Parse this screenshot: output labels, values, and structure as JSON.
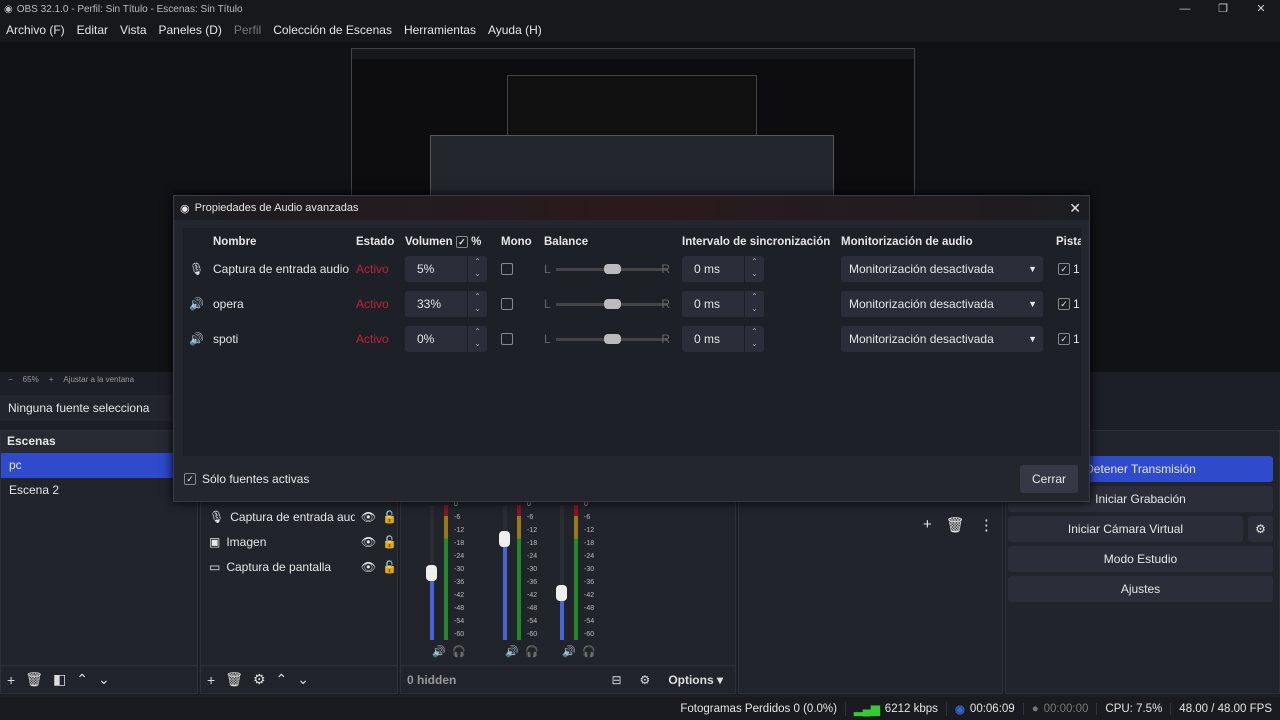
{
  "window": {
    "title": "OBS 32.1.0 - Perfil: Sin Título - Escenas: Sin Título",
    "controls": [
      "—",
      "❐",
      "✕"
    ]
  },
  "menu": [
    {
      "label": "Archivo (F)"
    },
    {
      "label": "Editar"
    },
    {
      "label": "Vista"
    },
    {
      "label": "Paneles (D)"
    },
    {
      "label": "Perfil",
      "disabled": true
    },
    {
      "label": "Colección de Escenas"
    },
    {
      "label": "Herramientas"
    },
    {
      "label": "Ayuda (H)"
    }
  ],
  "preview": {
    "zoom": "65%",
    "fit": "Ajustar a la ventana",
    "minus": "−",
    "plus": "+"
  },
  "source_toolbar": {
    "text": "Ninguna fuente selecciona"
  },
  "scenes": {
    "title": "Escenas",
    "items": [
      "pc",
      "Escena 2"
    ],
    "selected": "pc"
  },
  "sources": {
    "items": [
      {
        "name": "Captura de entrada aud",
        "icon": "microphone-icon"
      },
      {
        "name": "Imagen",
        "icon": "image-icon"
      },
      {
        "name": "Captura de pantalla",
        "icon": "monitor-icon"
      }
    ]
  },
  "mixer": {
    "hidden_label": "0 hidden",
    "options_label": "Options",
    "scale": [
      "0",
      "-6",
      "-12",
      "-18",
      "-24",
      "-30",
      "-36",
      "-42",
      "-48",
      "-54",
      "-60"
    ],
    "channels": [
      {
        "fader": 0.5
      },
      {
        "fader": 0.75
      },
      {
        "fader": 0.35
      }
    ]
  },
  "controls": {
    "stop_stream": "Detener Transmisión",
    "start_record": "Iniciar Grabación",
    "virtual_cam": "Iniciar Cámara Virtual",
    "studio_mode": "Modo Estudio",
    "settings": "Ajustes"
  },
  "dialog": {
    "title": "Propiedades de Audio avanzadas",
    "headers": {
      "name": "Nombre",
      "status": "Estado",
      "volume": "Volumen",
      "percent": "%",
      "mono": "Mono",
      "balance": "Balance",
      "sync": "Intervalo de sincronización",
      "monitoring": "Monitorización de audio",
      "tracks": "Pista"
    },
    "balance_left": "L",
    "balance_right": "R",
    "rows": [
      {
        "icon": "microphone-icon",
        "name": "Captura de entrada audio",
        "status": "Activo",
        "volume": "5%",
        "mono": false,
        "balance": 0.5,
        "sync": "0 ms",
        "monitoring": "Monitorización desactivada",
        "track1": "1"
      },
      {
        "icon": "speaker-icon",
        "name": "opera",
        "status": "Activo",
        "volume": "33%",
        "mono": false,
        "balance": 0.5,
        "sync": "0 ms",
        "monitoring": "Monitorización desactivada",
        "track1": "1"
      },
      {
        "icon": "speaker-icon",
        "name": "spoti",
        "status": "Activo",
        "volume": "0%",
        "mono": false,
        "balance": 0.5,
        "sync": "0 ms",
        "monitoring": "Monitorización desactivada",
        "track1": "1"
      }
    ],
    "active_only_label": "Sólo fuentes activas",
    "close_label": "Cerrar",
    "status_color": "#c0213a"
  },
  "status": {
    "dropped": "Fotogramas Perdidos 0 (0.0%)",
    "bitrate": "6212 kbps",
    "stream_time": "00:06:09",
    "record_time": "00:00:00",
    "cpu": "CPU: 7.5%",
    "fps": "48.00 / 48.00 FPS"
  }
}
